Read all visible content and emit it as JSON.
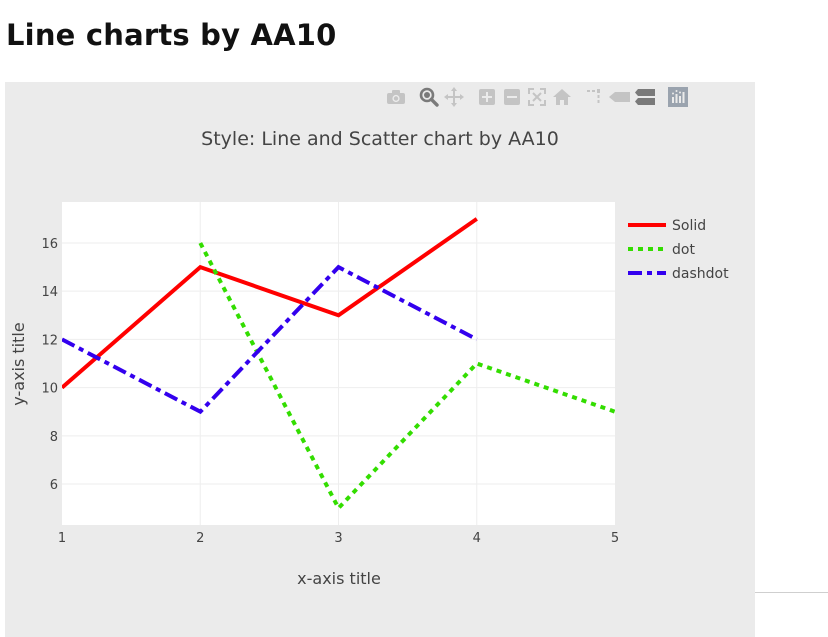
{
  "page": {
    "title": "Line charts by AA10"
  },
  "modebar": {
    "buttons": [
      {
        "icon": "camera-icon"
      },
      {
        "icon": "zoom-icon"
      },
      {
        "icon": "pan-icon"
      },
      {
        "icon": "zoom-in-icon"
      },
      {
        "icon": "zoom-out-icon"
      },
      {
        "icon": "autoscale-icon"
      },
      {
        "icon": "reset-axes-icon"
      },
      {
        "icon": "spike-lines-icon"
      },
      {
        "icon": "hover-closest-icon"
      },
      {
        "icon": "hover-compare-icon"
      },
      {
        "icon": "plotly-logo-icon"
      }
    ]
  },
  "chart_data": {
    "type": "line",
    "title": "Style: Line and Scatter chart by AA10",
    "xlabel": "x-axis title",
    "ylabel": "y-axis title",
    "xlim": [
      1,
      5
    ],
    "ylim": [
      4.3,
      17.7
    ],
    "xticks": [
      1,
      2,
      3,
      4,
      5
    ],
    "yticks": [
      6,
      8,
      10,
      12,
      14,
      16
    ],
    "grid": true,
    "legend_position": "top-right",
    "series": [
      {
        "name": "Solid",
        "dash": "solid",
        "color": "#ff0000",
        "x": [
          1,
          2,
          3,
          4
        ],
        "y": [
          10,
          15,
          13,
          17
        ]
      },
      {
        "name": "dot",
        "dash": "dot",
        "color": "#33dd00",
        "x": [
          2,
          3,
          4,
          5
        ],
        "y": [
          16,
          5,
          11,
          9
        ]
      },
      {
        "name": "dashdot",
        "dash": "dashdot",
        "color": "#3300ee",
        "x": [
          1,
          2,
          3,
          4
        ],
        "y": [
          12,
          9,
          15,
          12
        ]
      }
    ]
  }
}
